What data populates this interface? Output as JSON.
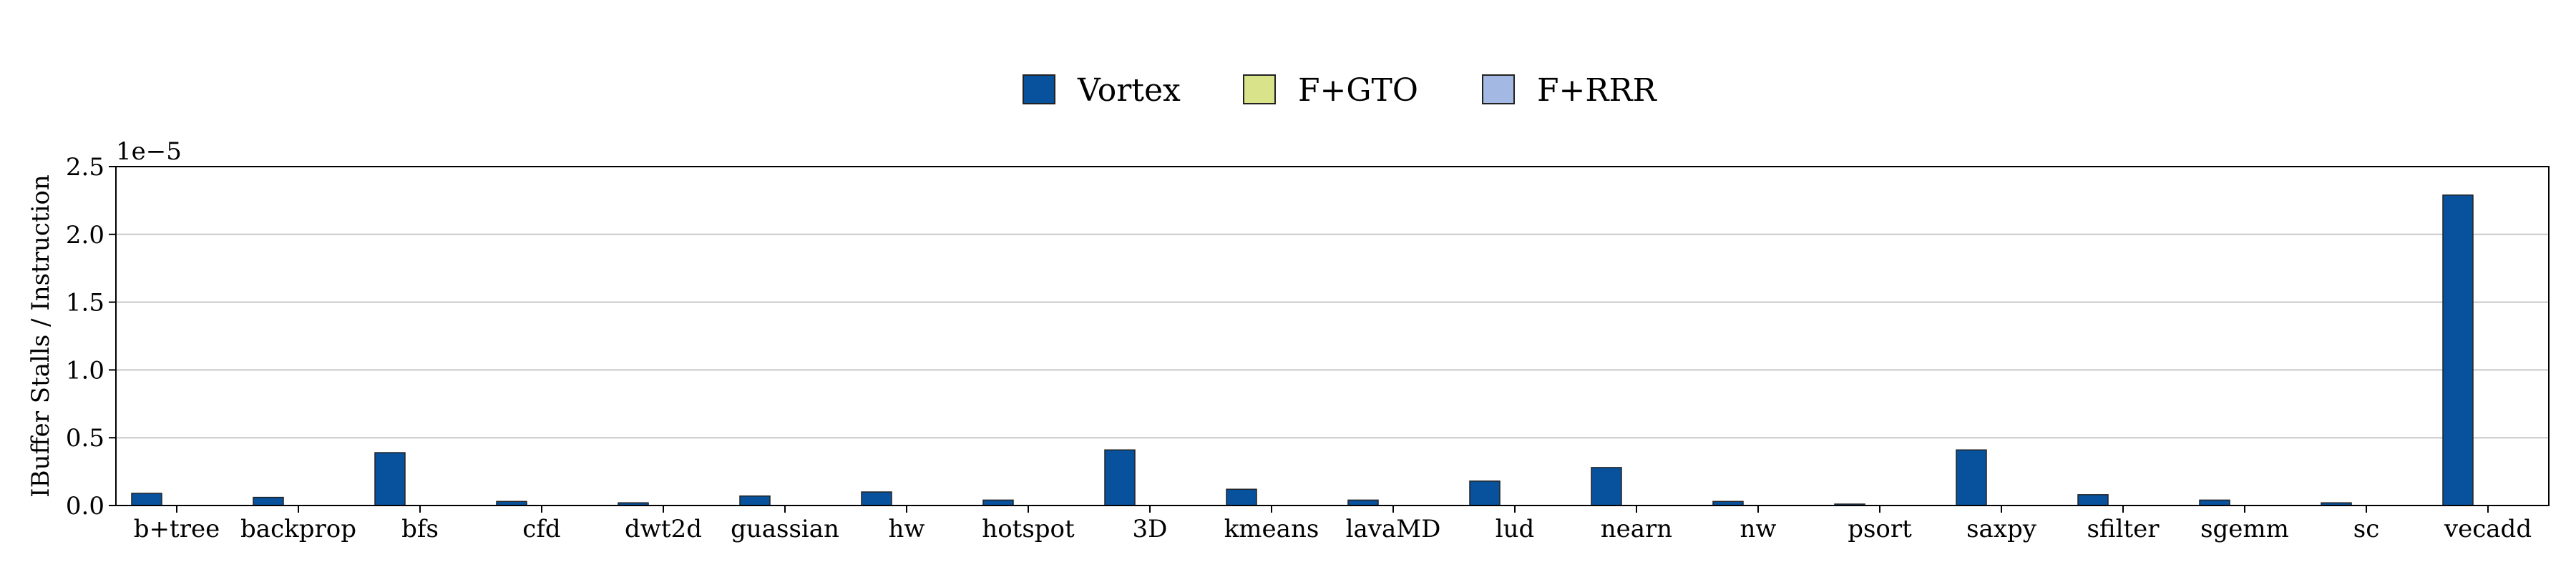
{
  "chart_data": {
    "type": "bar",
    "ylabel": "IBuffer Stalls / Instruction",
    "y_scale_label": "1e−5",
    "ylim": [
      0,
      2.5
    ],
    "yticks": [
      "0.0",
      "0.5",
      "1.0",
      "1.5",
      "2.0",
      "2.5"
    ],
    "grid": true,
    "legend_position": "top-center",
    "categories": [
      "b+tree",
      "backprop",
      "bfs",
      "cfd",
      "dwt2d",
      "guassian",
      "hw",
      "hotspot",
      "3D",
      "kmeans",
      "lavaMD",
      "lud",
      "nearn",
      "nw",
      "psort",
      "saxpy",
      "sfilter",
      "sgemm",
      "sc",
      "vecadd"
    ],
    "series": [
      {
        "name": "Vortex",
        "color": "#08519c",
        "values": [
          0.09,
          0.06,
          0.39,
          0.03,
          0.02,
          0.07,
          0.1,
          0.04,
          0.41,
          0.12,
          0.04,
          0.18,
          0.28,
          0.03,
          0.005,
          0.41,
          0.08,
          0.04,
          0.02,
          2.29
        ]
      },
      {
        "name": "F+GTO",
        "color": "#d9e38a",
        "values": [
          0,
          0,
          0,
          0,
          0,
          0,
          0,
          0,
          0,
          0,
          0,
          0,
          0,
          0,
          0,
          0,
          0,
          0,
          0,
          0
        ]
      },
      {
        "name": "F+RRR",
        "color": "#a3b9e3",
        "values": [
          0,
          0,
          0,
          0,
          0,
          0,
          0,
          0,
          0,
          0,
          0,
          0,
          0,
          0,
          0,
          0,
          0,
          0,
          0,
          0
        ]
      }
    ]
  }
}
